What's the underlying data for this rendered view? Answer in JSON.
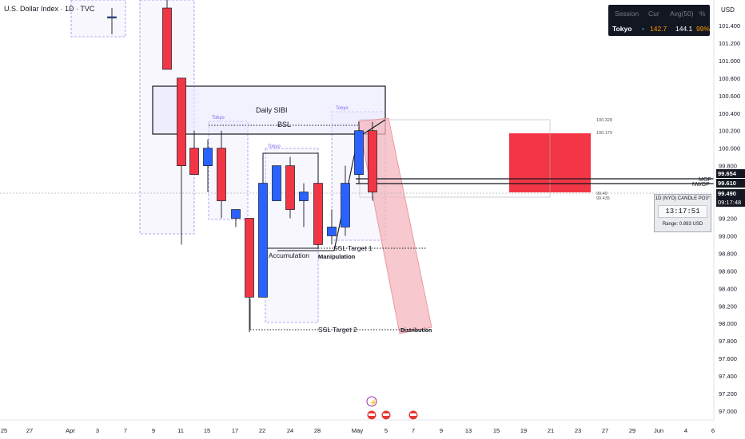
{
  "header": {
    "symbol_title": "U.S. Dollar Index · 1D · TVC",
    "currency": "USD"
  },
  "session_panel": {
    "headers": [
      "Session",
      "Cur",
      "Avg(50)",
      "%"
    ],
    "row": {
      "session": "Tokyo",
      "dot": "•",
      "cur": "142.7",
      "avg": "144.1",
      "pct": "99%"
    }
  },
  "price_axis": {
    "ticks": [
      "101.400",
      "101.200",
      "101.000",
      "100.800",
      "100.600",
      "100.400",
      "100.200",
      "100.000",
      "99.800",
      "99.200",
      "99.000",
      "98.800",
      "98.600",
      "98.400",
      "98.200",
      "98.000",
      "97.800",
      "97.600",
      "97.400",
      "97.200",
      "97.000"
    ],
    "tags": [
      {
        "text": "99.654",
        "color": "#131722"
      },
      {
        "text": "99.610",
        "color": "#131722"
      },
      {
        "text": "99.490",
        "color": "#131722"
      },
      {
        "text": "09:17:48",
        "color": "#131722"
      }
    ]
  },
  "time_axis": {
    "labels": [
      "25",
      "27",
      "Apr",
      "3",
      "7",
      "9",
      "11",
      "15",
      "17",
      "22",
      "24",
      "28",
      "May",
      "5",
      "7",
      "9",
      "13",
      "15",
      "19",
      "21",
      "23",
      "27",
      "29",
      "Jun",
      "4",
      "6"
    ]
  },
  "countdown": {
    "title": "1D (NYO) CANDLE PO3°",
    "time": "13:17:51",
    "range": "Range: 0.893 USD"
  },
  "annotations": {
    "daily_sibi": "Daily SIBI",
    "bsl": "BSL",
    "tokyo": "Tokyo",
    "accumulation": "Accumulation",
    "manipulation": "Manipulation",
    "ssl_target_1": "SSL Target 1",
    "ssl_target_2": "SSL Target 2",
    "distribution": "Distribution",
    "mop": "MOP",
    "nwop": "NWOP",
    "level_100_328": "100.328",
    "level_100_179": "100.179",
    "level_99_49": "99.49",
    "level_99_435": "99.435"
  },
  "colors": {
    "bull": "#2962ff",
    "bear": "#f23645",
    "zone_fill": "#f23645",
    "distribution_fill": "#f4b6bc",
    "tokyo_box": "#9c8cf0"
  },
  "chart_data": {
    "type": "candlestick",
    "symbol": "U.S. Dollar Index",
    "timeframe": "1D",
    "candles": [
      {
        "date": "Apr 1",
        "open": 101.5,
        "high": 101.6,
        "low": 101.3,
        "close": 101.5
      },
      {
        "date": "Apr 8",
        "open": 101.6,
        "high": 101.7,
        "low": 100.9,
        "close": 100.9
      },
      {
        "date": "Apr 10",
        "open": 100.8,
        "high": 100.8,
        "low": 98.9,
        "close": 99.8
      },
      {
        "date": "Apr 11",
        "open": 100.0,
        "high": 100.2,
        "low": 99.7,
        "close": 99.7
      },
      {
        "date": "Apr 14",
        "open": 99.8,
        "high": 100.1,
        "low": 99.5,
        "close": 100.0
      },
      {
        "date": "Apr 15",
        "open": 100.0,
        "high": 100.2,
        "low": 99.2,
        "close": 99.4
      },
      {
        "date": "Apr 16",
        "open": 99.2,
        "high": 99.3,
        "low": 99.1,
        "close": 99.3
      },
      {
        "date": "Apr 21",
        "open": 99.2,
        "high": 99.2,
        "low": 97.9,
        "close": 98.3
      },
      {
        "date": "Apr 22",
        "open": 98.3,
        "high": 99.6,
        "low": 98.3,
        "close": 99.6
      },
      {
        "date": "Apr 23",
        "open": 99.4,
        "high": 99.8,
        "low": 99.4,
        "close": 99.8
      },
      {
        "date": "Apr 24",
        "open": 99.8,
        "high": 99.9,
        "low": 99.2,
        "close": 99.3
      },
      {
        "date": "Apr 25",
        "open": 99.4,
        "high": 99.6,
        "low": 99.1,
        "close": 99.5
      },
      {
        "date": "Apr 28",
        "open": 99.6,
        "high": 99.6,
        "low": 98.9,
        "close": 98.9
      },
      {
        "date": "Apr 29",
        "open": 99.0,
        "high": 99.3,
        "low": 98.9,
        "close": 99.1
      },
      {
        "date": "Apr 30",
        "open": 99.1,
        "high": 99.8,
        "low": 99.0,
        "close": 99.6
      },
      {
        "date": "May 1",
        "open": 99.7,
        "high": 100.3,
        "low": 99.6,
        "close": 100.2
      },
      {
        "date": "May 2",
        "open": 100.2,
        "high": 100.3,
        "low": 99.4,
        "close": 99.5
      }
    ],
    "levels": [
      {
        "name": "MOP",
        "value": 99.654
      },
      {
        "name": "NWOP",
        "value": 99.61
      },
      {
        "name": "current",
        "value": 99.49
      }
    ],
    "ylim": [
      96.9,
      101.6
    ]
  }
}
